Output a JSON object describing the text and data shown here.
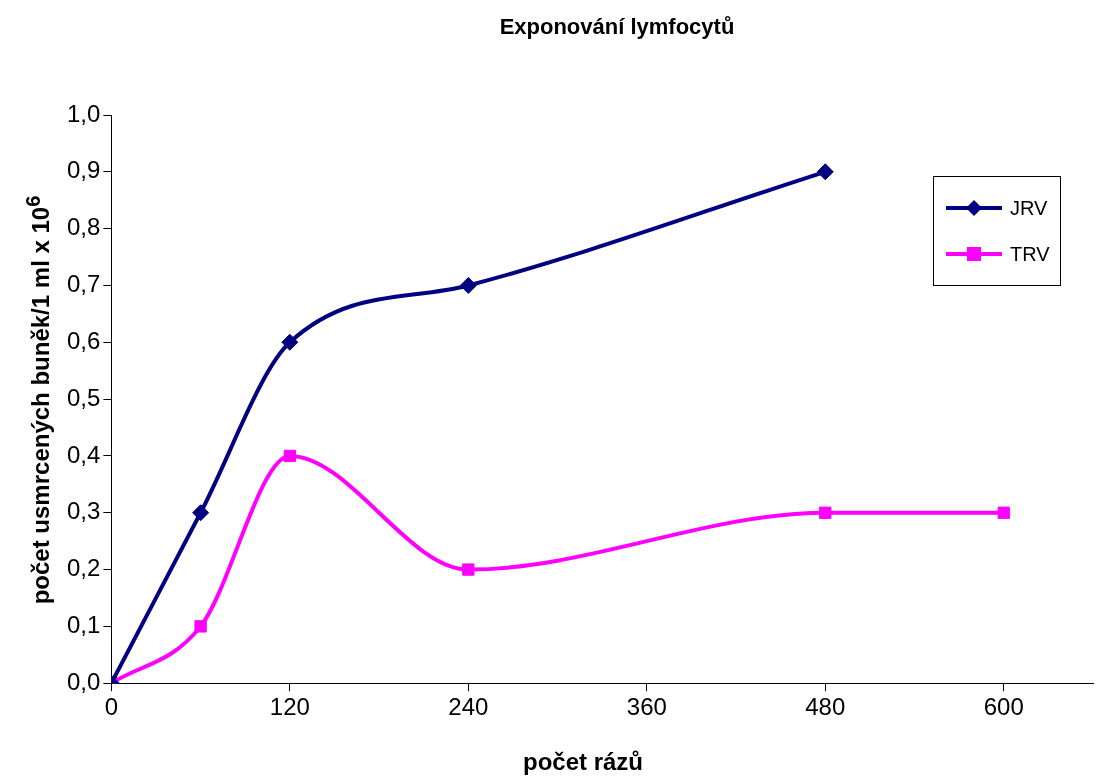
{
  "chart_data": {
    "type": "line",
    "title": "Exponování lymfocytů",
    "xlabel": "počet rázů",
    "ylabel": "počet usmrcených buněk/1 ml x 10$^{6}$",
    "xlim": [
      0,
      660
    ],
    "xticks": [
      0,
      120,
      240,
      360,
      480,
      600
    ],
    "ylim": [
      0,
      1
    ],
    "yticks": [
      {
        "value": 0,
        "label": "0,0"
      },
      {
        "value": 0.1,
        "label": "0,1"
      },
      {
        "value": 0.2,
        "label": "0,2"
      },
      {
        "value": 0.3,
        "label": "0,3"
      },
      {
        "value": 0.4,
        "label": "0,4"
      },
      {
        "value": 0.5,
        "label": "0,5"
      },
      {
        "value": 0.6,
        "label": "0,6"
      },
      {
        "value": 0.7,
        "label": "0,7"
      },
      {
        "value": 0.8,
        "label": "0,8"
      },
      {
        "value": 0.9,
        "label": "0,9"
      },
      {
        "value": 1,
        "label": "1,0"
      }
    ],
    "grid": false,
    "legend": "right",
    "series": [
      {
        "name": "JRV",
        "color": "#000080",
        "marker": "diamond",
        "x": [
          0,
          60,
          120,
          240,
          480
        ],
        "values": [
          0,
          0.3,
          0.6,
          0.7,
          0.9
        ]
      },
      {
        "name": "TRV",
        "color": "#ff00ff",
        "marker": "square",
        "x": [
          0,
          60,
          120,
          240,
          480,
          600
        ],
        "values": [
          0,
          0.1,
          0.4,
          0.2,
          0.3,
          0.3
        ]
      }
    ]
  }
}
